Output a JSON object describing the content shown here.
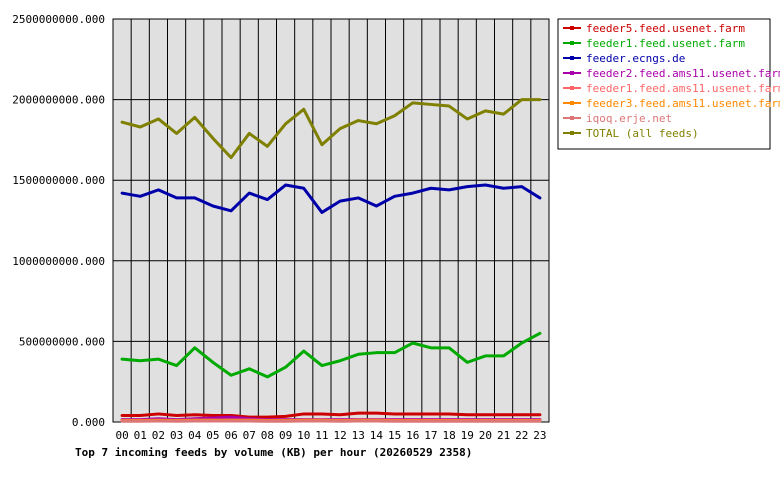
{
  "chart_data": {
    "type": "line",
    "title": "Top 7 incoming feeds by volume (KB) per hour (20260529 2358)",
    "xlabel": "",
    "ylabel": "",
    "categories": [
      "00",
      "01",
      "02",
      "03",
      "04",
      "05",
      "06",
      "07",
      "08",
      "09",
      "10",
      "11",
      "12",
      "13",
      "14",
      "15",
      "16",
      "17",
      "18",
      "19",
      "20",
      "21",
      "22",
      "23"
    ],
    "ylim": [
      0,
      2500000000
    ],
    "yticks": [
      0,
      500000000,
      1000000000,
      1500000000,
      2000000000,
      2500000000
    ],
    "ytick_labels": [
      "0.000",
      "500000000.000",
      "1000000000.000",
      "1500000000.000",
      "2000000000.000",
      "2500000000.000"
    ],
    "grid": true,
    "legend_position": "right",
    "series": [
      {
        "name": "feeder5.feed.usenet.farm",
        "color": "#cc0000",
        "values": [
          40000000,
          40000000,
          50000000,
          40000000,
          45000000,
          40000000,
          40000000,
          30000000,
          30000000,
          35000000,
          50000000,
          50000000,
          45000000,
          55000000,
          55000000,
          50000000,
          50000000,
          50000000,
          50000000,
          45000000,
          45000000,
          45000000,
          45000000,
          45000000
        ]
      },
      {
        "name": "feeder1.feed.usenet.farm",
        "color": "#00aa00",
        "values": [
          390000000,
          380000000,
          390000000,
          350000000,
          460000000,
          370000000,
          290000000,
          330000000,
          280000000,
          340000000,
          440000000,
          350000000,
          380000000,
          420000000,
          430000000,
          430000000,
          490000000,
          460000000,
          460000000,
          370000000,
          410000000,
          410000000,
          490000000,
          550000000
        ]
      },
      {
        "name": "feeder.ecngs.de",
        "color": "#0000aa",
        "values": [
          1420000000,
          1400000000,
          1440000000,
          1390000000,
          1390000000,
          1340000000,
          1310000000,
          1420000000,
          1380000000,
          1470000000,
          1450000000,
          1300000000,
          1370000000,
          1390000000,
          1340000000,
          1400000000,
          1420000000,
          1450000000,
          1440000000,
          1460000000,
          1470000000,
          1450000000,
          1460000000,
          1390000000
        ]
      },
      {
        "name": "feeder2.feed.ams11.usenet.farm",
        "color": "#aa00aa",
        "values": [
          15000000,
          15000000,
          20000000,
          15000000,
          20000000,
          25000000,
          30000000,
          20000000,
          15000000,
          15000000,
          15000000,
          15000000,
          15000000,
          15000000,
          15000000,
          15000000,
          15000000,
          15000000,
          15000000,
          15000000,
          15000000,
          15000000,
          15000000,
          15000000
        ]
      },
      {
        "name": "feeder1.feed.ams11.usenet.farm",
        "color": "#ff6666",
        "values": [
          10000000,
          10000000,
          12000000,
          10000000,
          12000000,
          12000000,
          12000000,
          12000000,
          10000000,
          10000000,
          12000000,
          12000000,
          10000000,
          12000000,
          12000000,
          10000000,
          10000000,
          10000000,
          10000000,
          10000000,
          10000000,
          10000000,
          10000000,
          10000000
        ]
      },
      {
        "name": "feeder3.feed.ams11.usenet.farm",
        "color": "#ff8800",
        "values": [
          8000000,
          8000000,
          10000000,
          8000000,
          10000000,
          10000000,
          10000000,
          10000000,
          8000000,
          8000000,
          10000000,
          10000000,
          8000000,
          10000000,
          10000000,
          8000000,
          8000000,
          8000000,
          8000000,
          8000000,
          8000000,
          8000000,
          8000000,
          8000000
        ]
      },
      {
        "name": "iqoq.erje.net",
        "color": "#dd7777",
        "values": [
          5000000,
          5000000,
          6000000,
          5000000,
          6000000,
          6000000,
          6000000,
          6000000,
          5000000,
          5000000,
          6000000,
          6000000,
          5000000,
          6000000,
          6000000,
          5000000,
          5000000,
          5000000,
          5000000,
          5000000,
          5000000,
          5000000,
          5000000,
          5000000
        ]
      },
      {
        "name": "TOTAL (all feeds)",
        "color": "#808000",
        "values": [
          1860000000,
          1830000000,
          1880000000,
          1790000000,
          1890000000,
          1760000000,
          1640000000,
          1790000000,
          1710000000,
          1850000000,
          1940000000,
          1720000000,
          1820000000,
          1870000000,
          1850000000,
          1900000000,
          1980000000,
          1970000000,
          1960000000,
          1880000000,
          1930000000,
          1910000000,
          2000000000,
          2000000000
        ]
      }
    ]
  }
}
